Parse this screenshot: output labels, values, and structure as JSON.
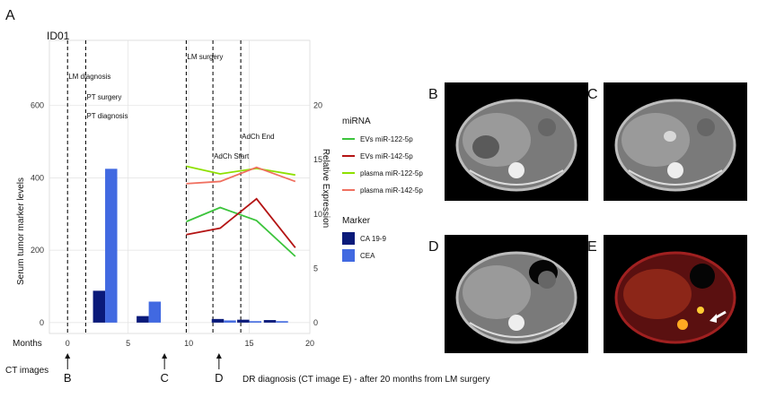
{
  "figure": {
    "panel_label": "A",
    "patient_id": "ID01",
    "row_labels": {
      "months": "Months",
      "ct_images": "CT images"
    },
    "ct_markers": [
      {
        "letter": "B",
        "month": 0
      },
      {
        "letter": "C",
        "month": 8
      },
      {
        "letter": "D",
        "month": 12.5
      }
    ],
    "footnote": "DR diagnosis (CT image E) - after 20 months from LM surgery",
    "ct_panels": [
      {
        "letter": "B",
        "kind": "ct"
      },
      {
        "letter": "C",
        "kind": "ct"
      },
      {
        "letter": "D",
        "kind": "ct"
      },
      {
        "letter": "E",
        "kind": "pet"
      }
    ],
    "colors": {
      "ca199": "#0a1a7a",
      "cea": "#4169e1",
      "ev_mir122": "#3cc43c",
      "ev_mir142": "#b41414",
      "plasma_mir122": "#8ee000",
      "plasma_mir142": "#f07060"
    }
  },
  "chart_data": {
    "type": "bar",
    "xlabel": "",
    "ylabel": "Serum tumor marker levels",
    "y2label": "Relative Expression",
    "xlim": [
      -1.5,
      20
    ],
    "ylim": [
      -30,
      780
    ],
    "y2lim": [
      -1,
      26
    ],
    "xticks": [
      0,
      5,
      10,
      15,
      20
    ],
    "yticks": [
      0,
      200,
      400,
      600
    ],
    "y2ticks": [
      0,
      5,
      10,
      15,
      20
    ],
    "events": [
      {
        "label": "LM diagnosis",
        "month": 0
      },
      {
        "label": "PT surgery",
        "month": 1.5
      },
      {
        "label": "PT diagnosis",
        "month": 1.5
      },
      {
        "label": "LM surgery",
        "month": 9.8
      },
      {
        "label": "AdCh Start",
        "month": 12
      },
      {
        "label": "AdCh End",
        "month": 14.3
      }
    ],
    "marker_legend_title": "Marker",
    "marker_series": [
      {
        "name": "CA 19-9",
        "x": [
          2.6,
          6.2,
          12.4,
          14.5,
          16.7
        ],
        "values": [
          88,
          18,
          10,
          8,
          7
        ]
      },
      {
        "name": "CEA",
        "x": [
          3.6,
          7.2,
          13.4,
          15.5,
          17.7
        ],
        "values": [
          425,
          58,
          6,
          4,
          4
        ]
      }
    ],
    "mirna_legend_title": "miRNA",
    "mirna_series": [
      {
        "name": "EVs miR-122-5p",
        "x": [
          9.8,
          12.6,
          15.6,
          18.8
        ],
        "values": [
          9.3,
          10.6,
          9.4,
          6.1
        ]
      },
      {
        "name": "EVs miR-142-5p",
        "x": [
          9.8,
          12.6,
          15.6,
          18.8
        ],
        "values": [
          8.1,
          8.7,
          11.4,
          6.9
        ]
      },
      {
        "name": "plasma miR-122-5p",
        "x": [
          9.8,
          12.6,
          15.6,
          18.8
        ],
        "values": [
          14.4,
          13.7,
          14.2,
          13.6
        ]
      },
      {
        "name": "plasma miR-142-5p",
        "x": [
          9.8,
          12.6,
          15.6,
          18.8
        ],
        "values": [
          12.8,
          13.0,
          14.3,
          13.0
        ]
      }
    ],
    "grid": true
  }
}
